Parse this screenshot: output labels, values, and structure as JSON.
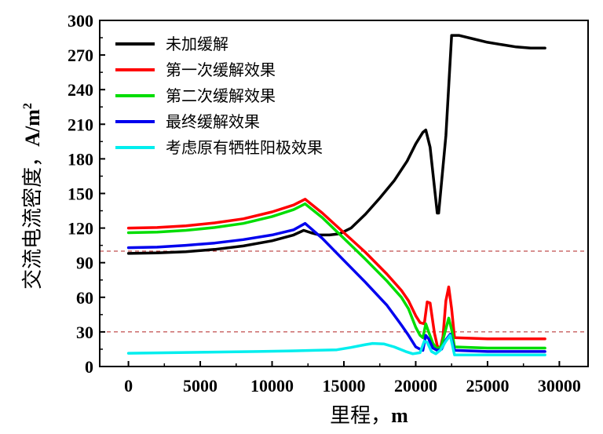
{
  "chart_data": {
    "type": "line",
    "title": "",
    "xlabel_prefix": "里程，",
    "xlabel_unit": "m",
    "ylabel_prefix": "交流电流密度，",
    "ylabel_unit_base": "A/m",
    "ylabel_unit_sup": "2",
    "xlim": [
      -2000,
      32000
    ],
    "ylim": [
      0,
      300
    ],
    "xticks": [
      0,
      5000,
      10000,
      15000,
      20000,
      25000,
      30000
    ],
    "yticks": [
      0,
      30,
      60,
      90,
      120,
      150,
      180,
      210,
      240,
      270,
      300
    ],
    "legend_position": "top-left",
    "reference_lines": [
      {
        "y": 100,
        "color": "#b22222",
        "style": "dashed"
      },
      {
        "y": 30,
        "color": "#b22222",
        "style": "dashed"
      }
    ],
    "series": [
      {
        "name": "未加缓解",
        "color": "#000000",
        "points": [
          [
            0,
            98
          ],
          [
            2000,
            98.5
          ],
          [
            4000,
            99.5
          ],
          [
            6000,
            101.5
          ],
          [
            8000,
            104.5
          ],
          [
            10000,
            109
          ],
          [
            11500,
            114
          ],
          [
            12200,
            118
          ],
          [
            12700,
            116
          ],
          [
            13300,
            114
          ],
          [
            14000,
            114
          ],
          [
            14700,
            115
          ],
          [
            15500,
            120
          ],
          [
            16500,
            132
          ],
          [
            17500,
            146
          ],
          [
            18500,
            161
          ],
          [
            19400,
            178
          ],
          [
            20000,
            193
          ],
          [
            20500,
            203
          ],
          [
            20700,
            205
          ],
          [
            21000,
            190
          ],
          [
            21500,
            133
          ],
          [
            21600,
            133
          ],
          [
            22100,
            200
          ],
          [
            22500,
            287
          ],
          [
            23000,
            287
          ],
          [
            24000,
            284
          ],
          [
            25000,
            281
          ],
          [
            26000,
            279
          ],
          [
            27000,
            277
          ],
          [
            28000,
            276
          ],
          [
            29000,
            276
          ]
        ]
      },
      {
        "name": "第一次缓解效果",
        "color": "#ff0000",
        "points": [
          [
            0,
            120
          ],
          [
            2000,
            120.5
          ],
          [
            4000,
            122
          ],
          [
            6000,
            124.5
          ],
          [
            8000,
            128
          ],
          [
            10000,
            134
          ],
          [
            11500,
            140
          ],
          [
            12300,
            145
          ],
          [
            13500,
            133
          ],
          [
            15000,
            116
          ],
          [
            16500,
            99
          ],
          [
            18000,
            80
          ],
          [
            19000,
            66
          ],
          [
            19500,
            57
          ],
          [
            20000,
            44
          ],
          [
            20300,
            38
          ],
          [
            20600,
            37
          ],
          [
            20800,
            56
          ],
          [
            21000,
            55
          ],
          [
            21300,
            29
          ],
          [
            21500,
            18
          ],
          [
            21700,
            15
          ],
          [
            21900,
            26
          ],
          [
            22100,
            57
          ],
          [
            22300,
            69
          ],
          [
            22500,
            50
          ],
          [
            22700,
            25
          ],
          [
            25000,
            24
          ],
          [
            29000,
            24
          ]
        ]
      },
      {
        "name": "第二次缓解效果",
        "color": "#00dd00",
        "points": [
          [
            0,
            116
          ],
          [
            2000,
            116.5
          ],
          [
            4000,
            118
          ],
          [
            6000,
            120.5
          ],
          [
            8000,
            124
          ],
          [
            10000,
            130
          ],
          [
            11500,
            136
          ],
          [
            12300,
            141
          ],
          [
            13500,
            129
          ],
          [
            15000,
            111
          ],
          [
            16500,
            93
          ],
          [
            18000,
            74
          ],
          [
            19000,
            60
          ],
          [
            19500,
            50
          ],
          [
            20000,
            34
          ],
          [
            20300,
            27
          ],
          [
            20500,
            25
          ],
          [
            20700,
            37
          ],
          [
            20900,
            30
          ],
          [
            21200,
            20
          ],
          [
            21500,
            15
          ],
          [
            21800,
            18
          ],
          [
            22000,
            28
          ],
          [
            22300,
            42
          ],
          [
            22500,
            32
          ],
          [
            22700,
            17
          ],
          [
            25000,
            16
          ],
          [
            29000,
            16
          ]
        ]
      },
      {
        "name": "最终缓解效果",
        "color": "#0000ee",
        "points": [
          [
            0,
            103
          ],
          [
            2000,
            103.5
          ],
          [
            4000,
            105
          ],
          [
            6000,
            107
          ],
          [
            8000,
            110
          ],
          [
            10000,
            114
          ],
          [
            11500,
            118.5
          ],
          [
            12300,
            124
          ],
          [
            13500,
            111
          ],
          [
            15000,
            92
          ],
          [
            16500,
            73
          ],
          [
            18000,
            53
          ],
          [
            19000,
            36
          ],
          [
            19500,
            27
          ],
          [
            20000,
            17
          ],
          [
            20300,
            15
          ],
          [
            20500,
            14
          ],
          [
            20700,
            27
          ],
          [
            20900,
            24
          ],
          [
            21200,
            16
          ],
          [
            21500,
            14
          ],
          [
            21800,
            15
          ],
          [
            22100,
            23
          ],
          [
            22400,
            28
          ],
          [
            22700,
            14
          ],
          [
            25000,
            13
          ],
          [
            29000,
            13
          ]
        ]
      },
      {
        "name": "考虑原有牺牲阳极效果",
        "color": "#00eeee",
        "points": [
          [
            0,
            11.5
          ],
          [
            3000,
            12
          ],
          [
            6000,
            12.5
          ],
          [
            9000,
            13
          ],
          [
            11000,
            13.5
          ],
          [
            13000,
            14
          ],
          [
            14500,
            14.5
          ],
          [
            15500,
            16.5
          ],
          [
            16500,
            19
          ],
          [
            17000,
            20
          ],
          [
            17800,
            19.5
          ],
          [
            18500,
            17
          ],
          [
            19300,
            13
          ],
          [
            19800,
            11
          ],
          [
            20300,
            12
          ],
          [
            20600,
            22
          ],
          [
            20800,
            21
          ],
          [
            21100,
            13
          ],
          [
            21400,
            11
          ],
          [
            21700,
            14
          ],
          [
            22100,
            22
          ],
          [
            22400,
            27
          ],
          [
            22700,
            10
          ],
          [
            25000,
            10
          ],
          [
            29000,
            10
          ]
        ]
      }
    ]
  }
}
